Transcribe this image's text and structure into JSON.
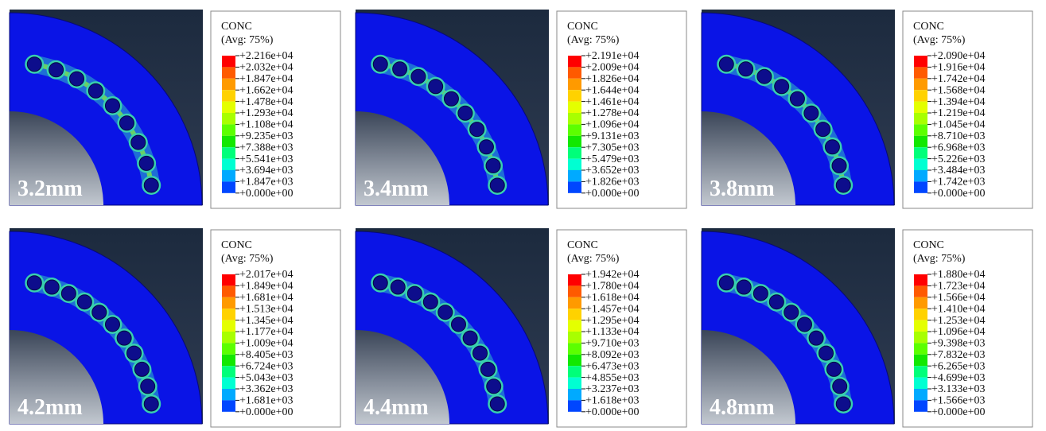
{
  "panels": [
    {
      "label": "3.2mm",
      "legend": {
        "title": "CONC",
        "subtitle": "(Avg: 75%)",
        "levels": [
          "+2.216e+04",
          "+2.032e+04",
          "+1.847e+04",
          "+1.662e+04",
          "+1.478e+04",
          "+1.293e+04",
          "+1.108e+04",
          "+9.235e+03",
          "+7.388e+03",
          "+5.541e+03",
          "+3.694e+03",
          "+1.847e+03",
          "+0.000e+00"
        ]
      }
    },
    {
      "label": "3.4mm",
      "legend": {
        "title": "CONC",
        "subtitle": "(Avg: 75%)",
        "levels": [
          "+2.191e+04",
          "+2.009e+04",
          "+1.826e+04",
          "+1.644e+04",
          "+1.461e+04",
          "+1.278e+04",
          "+1.096e+04",
          "+9.131e+03",
          "+7.305e+03",
          "+5.479e+03",
          "+3.652e+03",
          "+1.826e+03",
          "+0.000e+00"
        ]
      }
    },
    {
      "label": "3.8mm",
      "legend": {
        "title": "CONC",
        "subtitle": "(Avg: 75%)",
        "levels": [
          "+2.090e+04",
          "+1.916e+04",
          "+1.742e+04",
          "+1.568e+04",
          "+1.394e+04",
          "+1.219e+04",
          "+1.045e+04",
          "+8.710e+03",
          "+6.968e+03",
          "+5.226e+03",
          "+3.484e+03",
          "+1.742e+03",
          "+0.000e+00"
        ]
      }
    },
    {
      "label": "4.2mm",
      "legend": {
        "title": "CONC",
        "subtitle": "(Avg: 75%)",
        "levels": [
          "+2.017e+04",
          "+1.849e+04",
          "+1.681e+04",
          "+1.513e+04",
          "+1.345e+04",
          "+1.177e+04",
          "+1.009e+04",
          "+8.405e+03",
          "+6.724e+03",
          "+5.043e+03",
          "+3.362e+03",
          "+1.681e+03",
          "+0.000e+00"
        ]
      }
    },
    {
      "label": "4.4mm",
      "legend": {
        "title": "CONC",
        "subtitle": "(Avg: 75%)",
        "levels": [
          "+1.942e+04",
          "+1.780e+04",
          "+1.618e+04",
          "+1.457e+04",
          "+1.295e+04",
          "+1.133e+04",
          "+9.710e+03",
          "+8.092e+03",
          "+6.473e+03",
          "+4.855e+03",
          "+3.237e+03",
          "+1.618e+03",
          "+0.000e+00"
        ]
      }
    },
    {
      "label": "4.8mm",
      "legend": {
        "title": "CONC",
        "subtitle": "(Avg: 75%)",
        "levels": [
          "+1.880e+04",
          "+1.723e+04",
          "+1.566e+04",
          "+1.410e+04",
          "+1.253e+04",
          "+1.096e+04",
          "+9.398e+03",
          "+7.832e+03",
          "+6.265e+03",
          "+4.699e+03",
          "+3.133e+03",
          "+1.566e+03",
          "+0.000e+00"
        ]
      }
    }
  ]
}
